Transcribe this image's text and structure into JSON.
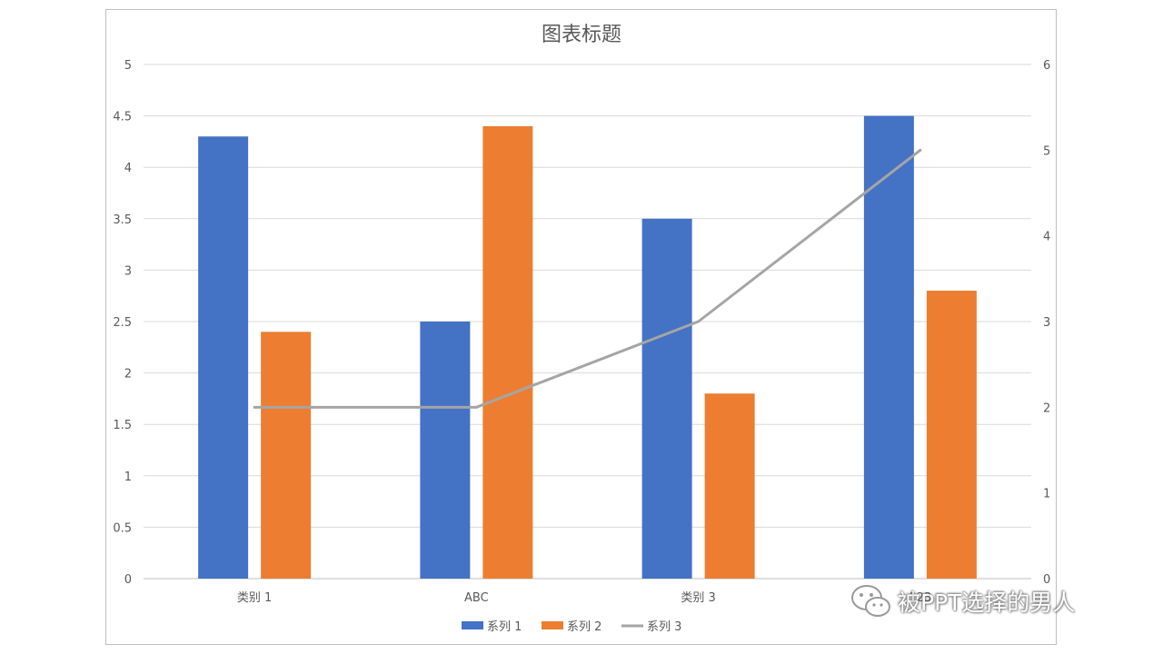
{
  "chart_data": {
    "type": "bar",
    "title": "图表标题",
    "categories": [
      "类别 1",
      "ABC",
      "类别 3",
      "123"
    ],
    "series": [
      {
        "name": "系列 1",
        "type": "bar",
        "axis": "left",
        "color": "#4472C4",
        "values": [
          4.3,
          2.5,
          3.5,
          4.5
        ]
      },
      {
        "name": "系列 2",
        "type": "bar",
        "axis": "left",
        "color": "#ED7D31",
        "values": [
          2.4,
          4.4,
          1.8,
          2.8
        ]
      },
      {
        "name": "系列 3",
        "type": "line",
        "axis": "right",
        "color": "#A5A5A5",
        "values": [
          2,
          2,
          3,
          5
        ]
      }
    ],
    "y_left": {
      "min": 0,
      "max": 5,
      "step": 0.5,
      "ticks": [
        "0",
        "0.5",
        "1",
        "1.5",
        "2",
        "2.5",
        "3",
        "3.5",
        "4",
        "4.5",
        "5"
      ]
    },
    "y_right": {
      "min": 0,
      "max": 6,
      "step": 1,
      "ticks": [
        "0",
        "1",
        "2",
        "3",
        "4",
        "5",
        "6"
      ]
    },
    "grid": true,
    "legend": "bottom"
  },
  "watermark": {
    "text": "被PPT选择的男人",
    "icon": "wechat-icon"
  }
}
